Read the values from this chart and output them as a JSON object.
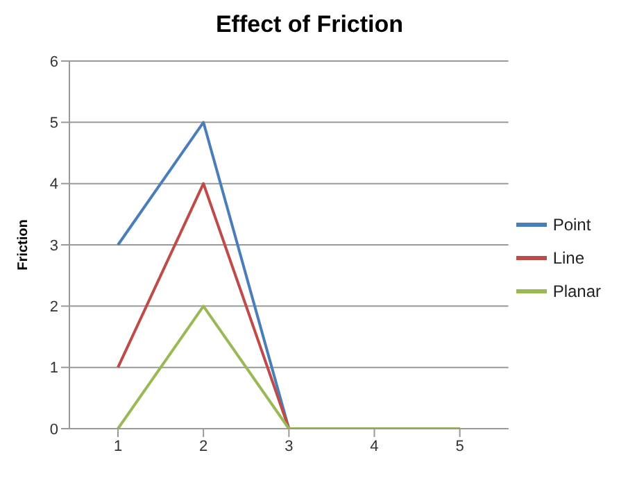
{
  "chart_data": {
    "type": "line",
    "title": "Effect of Friction",
    "ylabel": "Friction",
    "categories": [
      "1",
      "2",
      "3",
      "4",
      "5"
    ],
    "series": [
      {
        "name": "Point",
        "color": "#4a7ebb",
        "values": [
          3,
          5,
          0,
          0,
          0
        ]
      },
      {
        "name": "Line",
        "color": "#be4b48",
        "values": [
          1,
          4,
          0,
          0,
          0
        ]
      },
      {
        "name": "Planar",
        "color": "#98b954",
        "values": [
          0,
          2,
          0,
          0,
          0
        ]
      }
    ],
    "ylim": [
      0,
      6
    ],
    "yticks": [
      0,
      1,
      2,
      3,
      4,
      5,
      6
    ],
    "grid": "y",
    "legend": "right",
    "marker": "none"
  }
}
